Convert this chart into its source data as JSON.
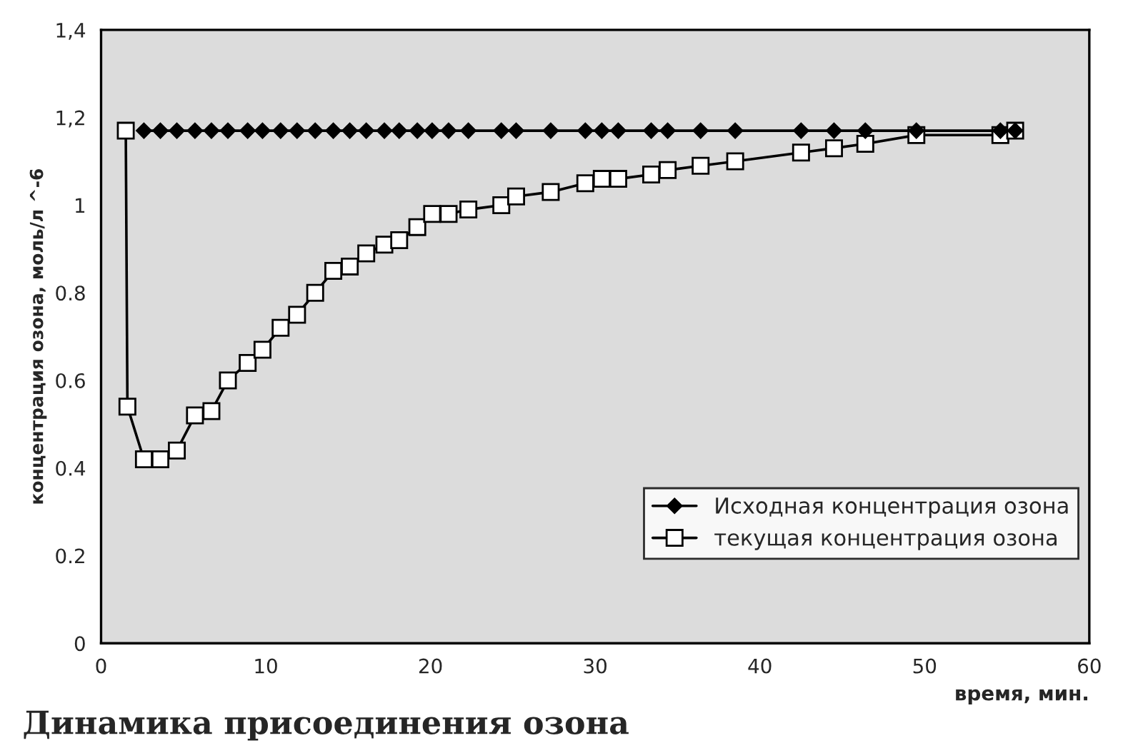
{
  "chart_data": {
    "type": "line",
    "xlabel": "время, мин.",
    "ylabel": "концентрация озона, моль/л ^-6",
    "annotations": [
      "Динамика присоединения озона"
    ],
    "xlim": [
      0,
      60
    ],
    "xticks": [
      0,
      10,
      20,
      30,
      40,
      50,
      60
    ],
    "ylim": [
      0,
      1.4
    ],
    "yticks": [
      0,
      {
        "value": 0.2,
        "label": "0.2"
      },
      {
        "value": 0.4,
        "label": "0.4"
      },
      {
        "value": 0.6,
        "label": "0.6"
      },
      {
        "value": 0.8,
        "label": "0.8"
      },
      1,
      {
        "value": 1.2,
        "label": "1,2"
      },
      {
        "value": 1.4,
        "label": "1,4"
      }
    ],
    "grid": false,
    "legend": "lower right",
    "series": [
      {
        "name": "Исходная концентрация озона",
        "color": "#000000",
        "marker": "diamond",
        "x": [
          2.6,
          3.6,
          4.6,
          5.7,
          6.7,
          7.7,
          8.9,
          9.8,
          10.9,
          11.9,
          13.0,
          14.1,
          15.1,
          16.1,
          17.2,
          18.1,
          19.2,
          20.1,
          21.1,
          22.3,
          24.3,
          25.2,
          27.3,
          29.4,
          30.4,
          31.4,
          33.4,
          34.4,
          36.4,
          38.5,
          42.5,
          44.5,
          46.4,
          49.5,
          54.6,
          55.5
        ],
        "values": [
          1.17,
          1.17,
          1.17,
          1.17,
          1.17,
          1.17,
          1.17,
          1.17,
          1.17,
          1.17,
          1.17,
          1.17,
          1.17,
          1.17,
          1.17,
          1.17,
          1.17,
          1.17,
          1.17,
          1.17,
          1.17,
          1.17,
          1.17,
          1.17,
          1.17,
          1.17,
          1.17,
          1.17,
          1.17,
          1.17,
          1.17,
          1.17,
          1.17,
          1.17,
          1.17,
          1.17
        ]
      },
      {
        "name": "текущая концентрация озона",
        "color": "#000000",
        "marker": "square",
        "x": [
          1.5,
          1.6,
          2.6,
          3.6,
          4.6,
          5.7,
          6.7,
          7.7,
          8.9,
          9.8,
          10.9,
          11.9,
          13.0,
          14.1,
          15.1,
          16.1,
          17.2,
          18.1,
          19.2,
          20.1,
          21.1,
          22.3,
          24.3,
          25.2,
          27.3,
          29.4,
          30.4,
          31.4,
          33.4,
          34.4,
          36.4,
          38.5,
          42.5,
          44.5,
          46.4,
          49.5,
          54.6,
          55.5
        ],
        "values": [
          1.17,
          0.54,
          0.42,
          0.42,
          0.44,
          0.52,
          0.53,
          0.6,
          0.64,
          0.67,
          0.72,
          0.75,
          0.8,
          0.85,
          0.86,
          0.89,
          0.91,
          0.92,
          0.95,
          0.98,
          0.98,
          0.99,
          1.0,
          1.02,
          1.03,
          1.05,
          1.06,
          1.06,
          1.07,
          1.08,
          1.09,
          1.1,
          1.12,
          1.13,
          1.14,
          1.16,
          1.16,
          1.17
        ]
      }
    ]
  }
}
